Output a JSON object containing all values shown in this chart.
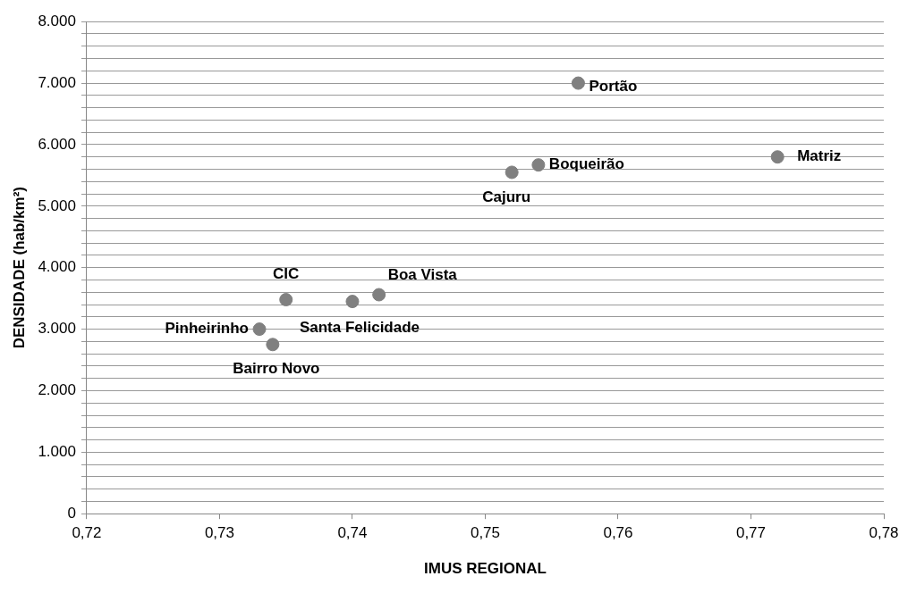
{
  "chart_data": {
    "type": "scatter",
    "xlabel": "IMUS REGIONAL",
    "ylabel": "DENSIDADE (hab/km²)",
    "x": [
      0.757,
      0.754,
      0.752,
      0.772,
      0.735,
      0.742,
      0.74,
      0.733,
      0.734
    ],
    "series": [
      {
        "color": "#808080",
        "values": [
          7000,
          5670,
          5550,
          5800,
          3480,
          3560,
          3450,
          3000,
          2750
        ]
      }
    ],
    "annotations": [
      {
        "text": "Portão",
        "x": 0.757,
        "y": 7000
      },
      {
        "text": "Boqueirão",
        "x": 0.754,
        "y": 5670
      },
      {
        "text": "Cajuru",
        "x": 0.752,
        "y": 5550
      },
      {
        "text": "Matriz",
        "x": 0.772,
        "y": 5800
      },
      {
        "text": "CIC",
        "x": 0.735,
        "y": 3480
      },
      {
        "text": "Boa Vista",
        "x": 0.742,
        "y": 3560
      },
      {
        "text": "Santa Felicidade",
        "x": 0.74,
        "y": 3450
      },
      {
        "text": "Pinheirinho",
        "x": 0.733,
        "y": 3000
      },
      {
        "text": "Bairro Novo",
        "x": 0.734,
        "y": 2750
      }
    ],
    "xlim": [
      0.72,
      0.78
    ],
    "xticks": [
      {
        "value": 0.72,
        "label": "0,72"
      },
      {
        "value": 0.73,
        "label": "0,73"
      },
      {
        "value": 0.74,
        "label": "0,74"
      },
      {
        "value": 0.75,
        "label": "0,75"
      },
      {
        "value": 0.76,
        "label": "0,76"
      },
      {
        "value": 0.77,
        "label": "0,77"
      },
      {
        "value": 0.78,
        "label": "0,78"
      }
    ],
    "ylim": [
      0,
      8000
    ],
    "yticks": [
      0,
      {
        "value": 200,
        "label": null
      },
      {
        "value": 400,
        "label": null
      },
      {
        "value": 600,
        "label": null
      },
      {
        "value": 800,
        "label": null
      },
      {
        "value": 1000,
        "label": "1.000"
      },
      {
        "value": 1200,
        "label": null
      },
      {
        "value": 1400,
        "label": null
      },
      {
        "value": 1600,
        "label": null
      },
      {
        "value": 1800,
        "label": null
      },
      {
        "value": 2000,
        "label": "2.000"
      },
      {
        "value": 2200,
        "label": null
      },
      {
        "value": 2400,
        "label": null
      },
      {
        "value": 2600,
        "label": null
      },
      {
        "value": 2800,
        "label": null
      },
      {
        "value": 3000,
        "label": "3.000"
      },
      {
        "value": 3200,
        "label": null
      },
      {
        "value": 3400,
        "label": null
      },
      {
        "value": 3600,
        "label": null
      },
      {
        "value": 3800,
        "label": null
      },
      {
        "value": 4000,
        "label": "4.000"
      },
      {
        "value": 4200,
        "label": null
      },
      {
        "value": 4400,
        "label": null
      },
      {
        "value": 4600,
        "label": null
      },
      {
        "value": 4800,
        "label": null
      },
      {
        "value": 5000,
        "label": "5.000"
      },
      {
        "value": 5200,
        "label": null
      },
      {
        "value": 5400,
        "label": null
      },
      {
        "value": 5600,
        "label": null
      },
      {
        "value": 5800,
        "label": null
      },
      {
        "value": 6000,
        "label": "6.000"
      },
      {
        "value": 6200,
        "label": null
      },
      {
        "value": 6400,
        "label": null
      },
      {
        "value": 6600,
        "label": null
      },
      {
        "value": 6800,
        "label": null
      },
      {
        "value": 7000,
        "label": "7.000"
      },
      {
        "value": 7200,
        "label": null
      },
      {
        "value": 7400,
        "label": null
      },
      {
        "value": 7600,
        "label": null
      },
      {
        "value": 7800,
        "label": null
      },
      {
        "value": 8000,
        "label": "8.000"
      }
    ],
    "grid": "y",
    "marker": "circle",
    "legend": false
  }
}
